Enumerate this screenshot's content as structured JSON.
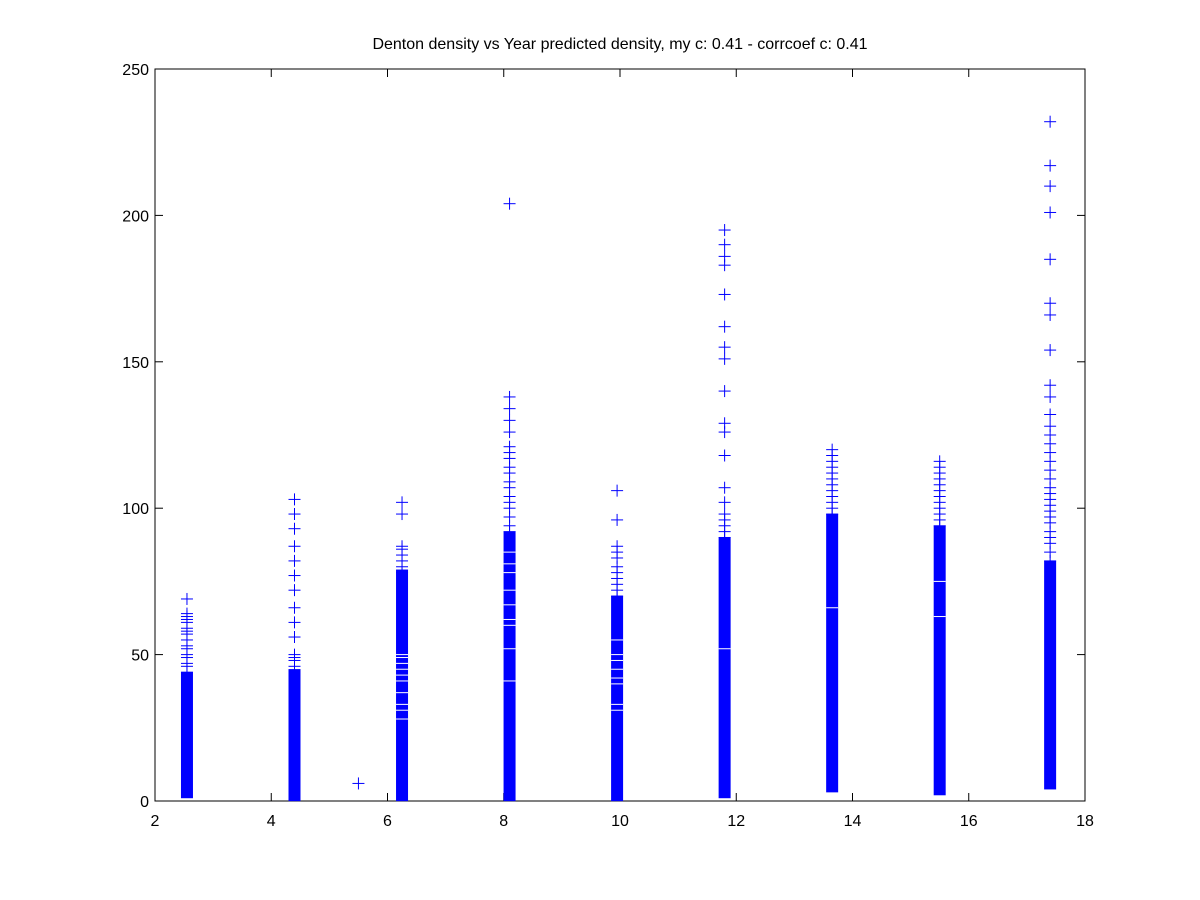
{
  "chart_data": {
    "type": "scatter",
    "title": "Denton density vs Year predicted density, my c: 0.41 - corrcoef c: 0.41",
    "xlabel": "",
    "ylabel": "",
    "xlim": [
      2,
      18
    ],
    "ylim": [
      0,
      250
    ],
    "xticks": [
      2,
      4,
      6,
      8,
      10,
      12,
      14,
      16,
      18
    ],
    "yticks": [
      0,
      50,
      100,
      150,
      200,
      250
    ],
    "grid": false,
    "marker": "+",
    "marker_color": "#0000ff",
    "columns": [
      {
        "x": 2.55,
        "dense_range": [
          3,
          42
        ],
        "points": [
          44,
          46,
          47,
          49,
          50,
          52,
          53,
          55,
          57,
          58,
          59,
          61,
          62,
          63,
          64,
          69
        ]
      },
      {
        "x": 4.4,
        "dense_range": [
          2,
          43
        ],
        "points": [
          44,
          46,
          48,
          49,
          50,
          56,
          61,
          66,
          72,
          77,
          82,
          87,
          93,
          98,
          103
        ]
      },
      {
        "x": 5.5,
        "dense_range": null,
        "points": [
          6
        ]
      },
      {
        "x": 6.25,
        "dense_range": [
          2,
          77
        ],
        "points": [
          28,
          31,
          33,
          37,
          41,
          43,
          45,
          47,
          49,
          50,
          78,
          80,
          82,
          84,
          86,
          87,
          98,
          102
        ]
      },
      {
        "x": 8.1,
        "dense_range": [
          2,
          90
        ],
        "points": [
          41,
          52,
          60,
          62,
          67,
          72,
          78,
          81,
          85,
          92,
          94,
          97,
          100,
          102,
          104,
          107,
          109,
          112,
          114,
          117,
          119,
          121,
          126,
          130,
          134,
          138,
          204
        ]
      },
      {
        "x": 9.95,
        "dense_range": [
          2,
          68
        ],
        "points": [
          31,
          33,
          40,
          42,
          45,
          48,
          50,
          55,
          70,
          72,
          74,
          76,
          78,
          80,
          83,
          85,
          87,
          96,
          106
        ]
      },
      {
        "x": 11.8,
        "dense_range": [
          3,
          88
        ],
        "points": [
          52,
          90,
          92,
          94,
          96,
          98,
          102,
          107,
          118,
          126,
          129,
          140,
          151,
          155,
          162,
          173,
          183,
          186,
          190,
          195
        ]
      },
      {
        "x": 13.65,
        "dense_range": [
          5,
          96
        ],
        "points": [
          66,
          98,
          100,
          102,
          104,
          106,
          108,
          110,
          112,
          114,
          116,
          118,
          120
        ]
      },
      {
        "x": 15.5,
        "dense_range": [
          4,
          92
        ],
        "points": [
          63,
          75,
          94,
          96,
          98,
          100,
          102,
          104,
          106,
          108,
          110,
          112,
          114,
          116
        ]
      },
      {
        "x": 17.4,
        "dense_range": [
          6,
          80
        ],
        "points": [
          82,
          85,
          88,
          90,
          92,
          95,
          97,
          99,
          101,
          103,
          105,
          107,
          110,
          113,
          116,
          119,
          122,
          125,
          128,
          132,
          138,
          142,
          154,
          166,
          170,
          185,
          201,
          210,
          217,
          232
        ]
      }
    ]
  }
}
